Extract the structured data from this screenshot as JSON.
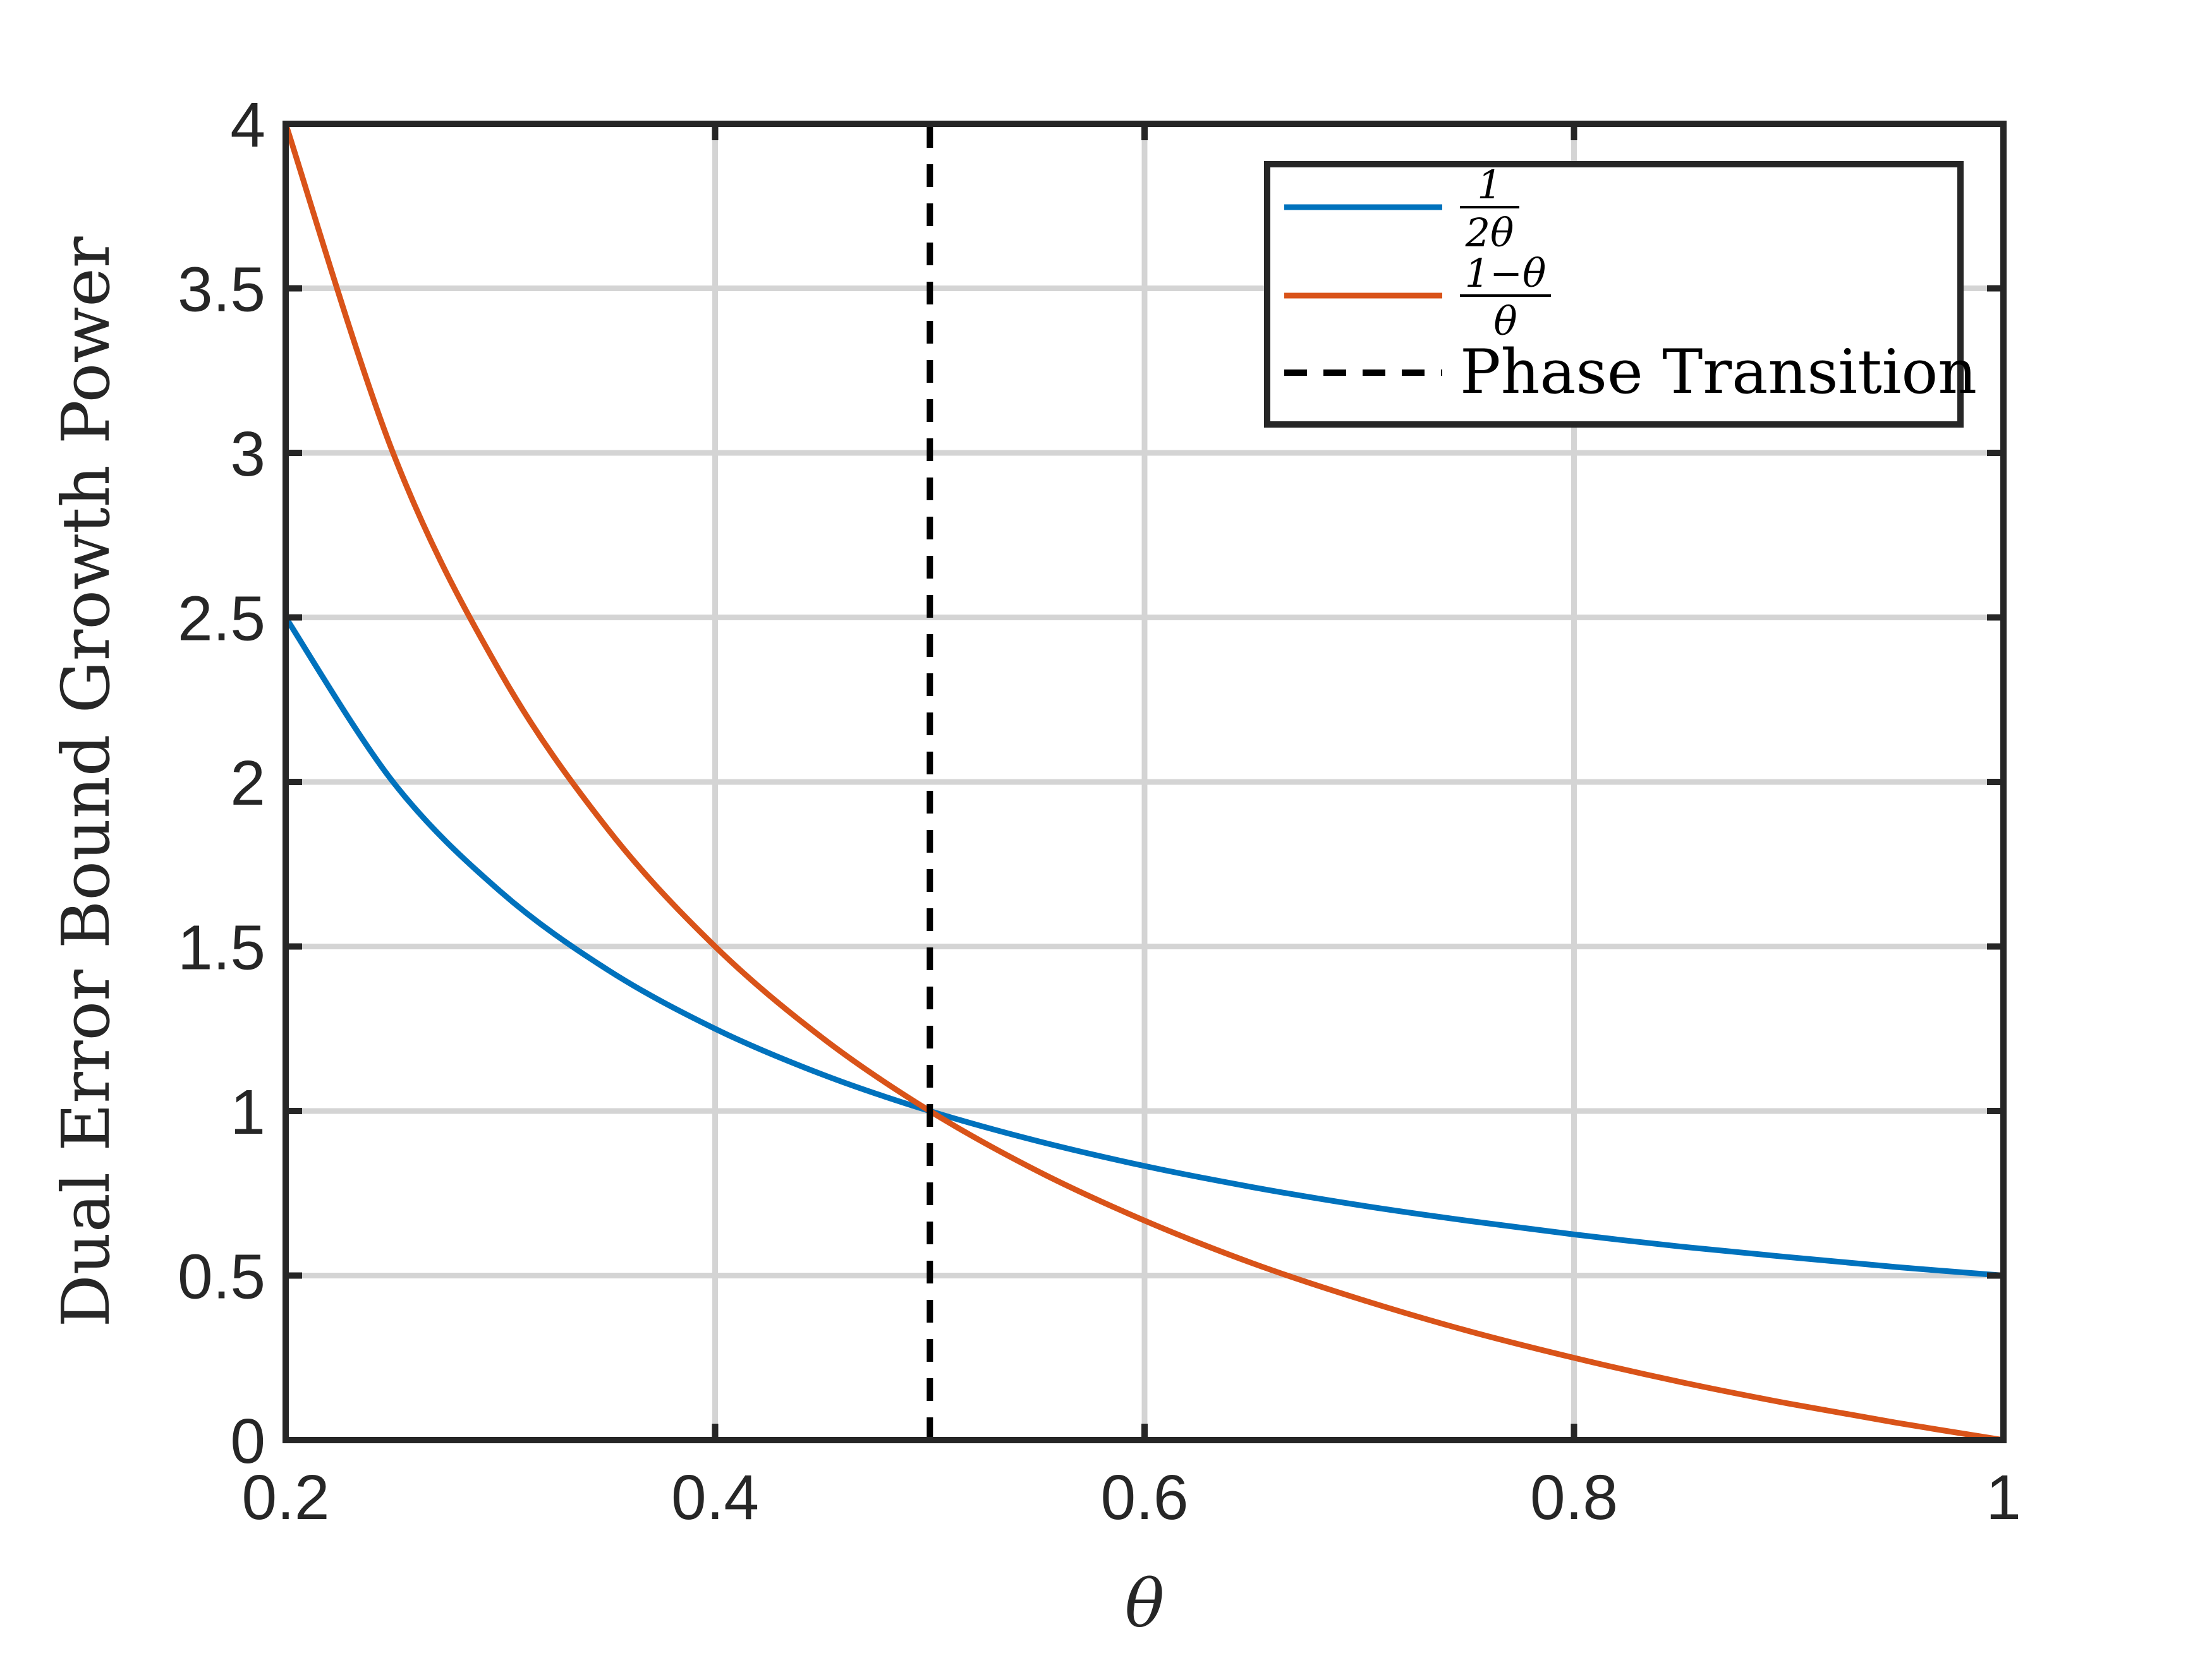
{
  "chart_data": {
    "type": "line",
    "title": "",
    "xlabel": "θ",
    "ylabel": "Dual Error Bound Growth Power",
    "xlim": [
      0.2,
      1
    ],
    "ylim": [
      0,
      4
    ],
    "x_ticks": [
      0.2,
      0.4,
      0.6,
      0.8,
      1
    ],
    "x_tick_labels": [
      "0.2",
      "0.4",
      "0.6",
      "0.8",
      "1"
    ],
    "y_ticks": [
      0,
      0.5,
      1,
      1.5,
      2,
      2.5,
      3,
      3.5,
      4
    ],
    "y_tick_labels": [
      "0",
      "0.5",
      "1",
      "1.5",
      "2",
      "2.5",
      "3",
      "3.5",
      "4"
    ],
    "grid": true,
    "legend_position": "top-right",
    "series": [
      {
        "name": "1/(2θ)",
        "legend_numerator": "1",
        "legend_denominator": "2θ",
        "color": "#0072BD",
        "style": "solid",
        "x": [
          0.2,
          0.25,
          0.3,
          0.35,
          0.4,
          0.45,
          0.5,
          0.55,
          0.6,
          0.65,
          0.7,
          0.75,
          0.8,
          0.85,
          0.9,
          0.95,
          1.0
        ],
        "y": [
          2.5,
          2.0,
          1.667,
          1.429,
          1.25,
          1.111,
          1.0,
          0.909,
          0.833,
          0.769,
          0.714,
          0.667,
          0.625,
          0.588,
          0.556,
          0.526,
          0.5
        ]
      },
      {
        "name": "(1−θ)/θ",
        "legend_numerator": "1−θ",
        "legend_denominator": "θ",
        "color": "#D95319",
        "style": "solid",
        "x": [
          0.2,
          0.25,
          0.3,
          0.35,
          0.4,
          0.45,
          0.5,
          0.55,
          0.6,
          0.65,
          0.7,
          0.75,
          0.8,
          0.85,
          0.9,
          0.95,
          1.0
        ],
        "y": [
          4.0,
          3.0,
          2.333,
          1.857,
          1.5,
          1.222,
          1.0,
          0.818,
          0.667,
          0.538,
          0.429,
          0.333,
          0.25,
          0.176,
          0.111,
          0.053,
          0.0
        ]
      },
      {
        "name": "Phase Transition",
        "color": "#000000",
        "style": "dashed",
        "x": [
          0.5,
          0.5
        ],
        "y": [
          0,
          4
        ]
      }
    ]
  }
}
